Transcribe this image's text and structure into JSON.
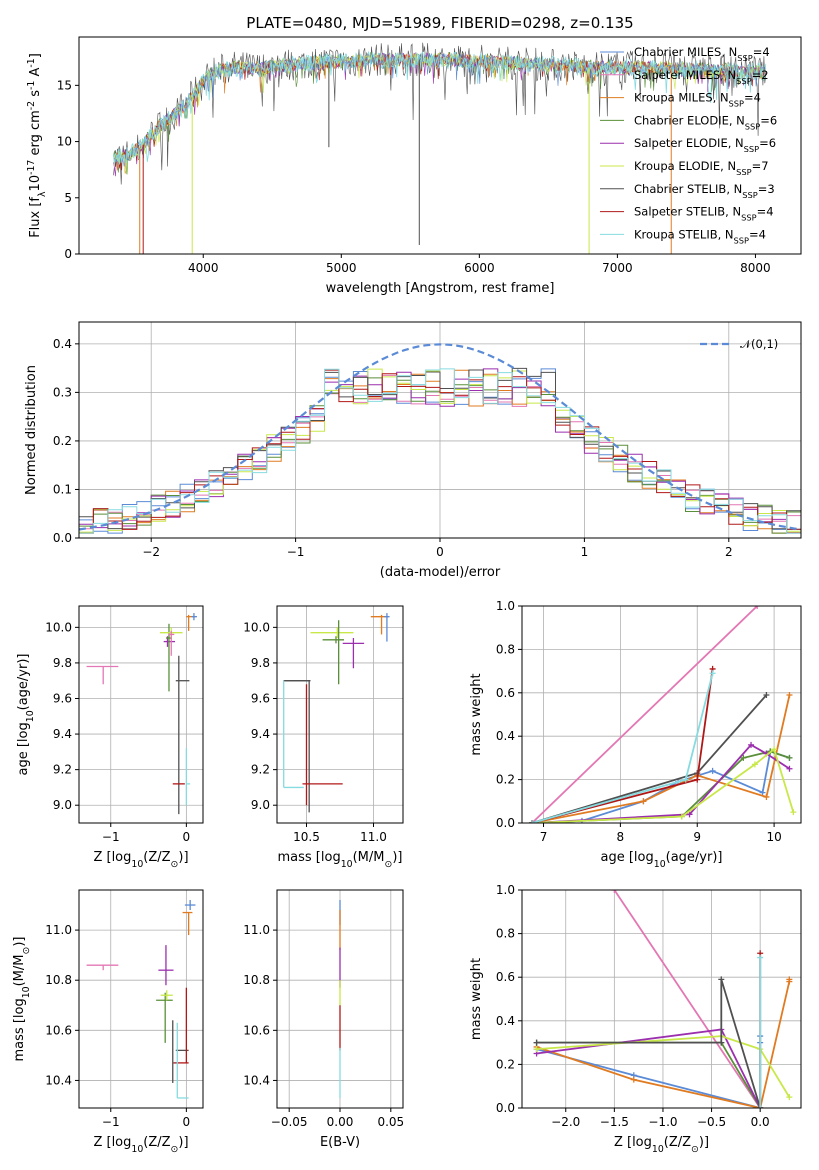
{
  "title": "PLATE=0480, MJD=51989, FIBERID=0298, z=0.135",
  "colors": {
    "Chabrier MILES": "#5b8bd6",
    "Salpeter MILES": "#e377b4",
    "Kroupa MILES": "#e07b22",
    "Chabrier ELODIE": "#5a8f3a",
    "Salpeter ELODIE": "#9b2fae",
    "Kroupa ELODIE": "#c8e84a",
    "Chabrier STELIB": "#505050",
    "Salpeter STELIB": "#b01818",
    "Kroupa STELIB": "#86dbe0"
  },
  "chart_data": [
    {
      "id": "spectrum",
      "type": "line",
      "xlabel": "wavelength [Angstrom, rest frame]",
      "ylabel": "Flux [f$_\\lambda$10$^{-17}$ erg cm$^{-2}$ s$^{-1}$ A$^{-1}$]",
      "xlim": [
        3100,
        8330
      ],
      "ylim": [
        0,
        19.3
      ],
      "xticks": [
        4000,
        5000,
        6000,
        7000,
        8000
      ],
      "yticks": [
        0,
        5,
        10,
        15
      ],
      "legend_position": "top-right",
      "legend": [
        {
          "label": "Chabrier MILES, N$_{SSP}$=4",
          "color": "#5b8bd6"
        },
        {
          "label": "Salpeter MILES, N$_{SSP}$=2",
          "color": "#e377b4"
        },
        {
          "label": "Kroupa MILES, N$_{SSP}$=4",
          "color": "#e07b22"
        },
        {
          "label": "Chabrier ELODIE, N$_{SSP}$=6",
          "color": "#5a8f3a"
        },
        {
          "label": "Salpeter ELODIE, N$_{SSP}$=6",
          "color": "#9b2fae"
        },
        {
          "label": "Kroupa ELODIE, N$_{SSP}$=7",
          "color": "#c8e84a"
        },
        {
          "label": "Chabrier STELIB, N$_{SSP}$=3",
          "color": "#505050"
        },
        {
          "label": "Salpeter STELIB, N$_{SSP}$=4",
          "color": "#b01818"
        },
        {
          "label": "Kroupa STELIB, N$_{SSP}$=4",
          "color": "#86dbe0"
        }
      ],
      "continuum": {
        "x": [
          3350,
          3450,
          3550,
          3650,
          3750,
          3850,
          3950,
          4050,
          4200,
          4400,
          4600,
          4800,
          5000,
          5300,
          5600,
          6000,
          6400,
          6800,
          7200,
          7600,
          8000,
          8100
        ],
        "y": [
          8.5,
          8.8,
          9.5,
          11.0,
          12.0,
          13.0,
          14.5,
          16.0,
          16.6,
          16.5,
          16.8,
          17.0,
          17.1,
          17.3,
          17.3,
          17.2,
          16.9,
          16.6,
          16.6,
          16.4,
          16.2,
          16.1
        ]
      },
      "spikes": [
        {
          "x": 3540,
          "y": 0,
          "color": "#e07b22"
        },
        {
          "x": 3565,
          "y": 0,
          "color": "#b01818"
        },
        {
          "x": 3920,
          "y": 0,
          "color": "#c8e84a"
        },
        {
          "x": 4910,
          "y": 9.5,
          "color": "#505050"
        },
        {
          "x": 5565,
          "y": 0.8,
          "color": "#505050"
        },
        {
          "x": 6795,
          "y": 0,
          "color": "#c8e84a"
        },
        {
          "x": 7390,
          "y": 0,
          "color": "#e07b22"
        }
      ]
    },
    {
      "id": "residuals",
      "type": "histogram",
      "xlabel": "(data-model)/error",
      "ylabel": "Normed distribution",
      "xlim": [
        -2.5,
        2.5
      ],
      "ylim": [
        0,
        0.445
      ],
      "xticks": [
        -2,
        -1,
        0,
        1,
        2
      ],
      "yticks": [
        0.0,
        0.1,
        0.2,
        0.3,
        0.4
      ],
      "legend_position": "top-right",
      "gaussian": {
        "label": "$\\mathcal{N}(0,1)$",
        "color": "#5b8bd6",
        "mean": 0,
        "sigma": 1
      }
    },
    {
      "id": "age_vs_Z",
      "type": "errorbar",
      "xlabel": "Z [log$_{10}$(Z/Z$_\\odot$)]",
      "ylabel": "age  [log$_{10}$(age/yr)]",
      "xlim": [
        -1.42,
        0.22
      ],
      "ylim": [
        8.9,
        10.12
      ],
      "xticks": [
        -1,
        0
      ],
      "yticks": [
        9.0,
        9.2,
        9.4,
        9.6,
        9.8,
        10.0
      ],
      "points": [
        {
          "x": -1.1,
          "y": 9.78,
          "xl": 0.22,
          "xh": 0.2,
          "yl": 0.1,
          "yh": 0.0,
          "color": "#e377b4"
        },
        {
          "x": -0.25,
          "y": 9.92,
          "xl": 0.05,
          "xh": 0.1,
          "yl": 0.03,
          "yh": 0.03,
          "color": "#9b2fae"
        },
        {
          "x": -0.23,
          "y": 9.94,
          "xl": 0.04,
          "xh": 0.04,
          "yl": 0.3,
          "yh": 0.08,
          "color": "#5a8f3a"
        },
        {
          "x": -0.2,
          "y": 9.97,
          "xl": 0.15,
          "xh": 0.15,
          "yl": 0.03,
          "yh": 0.03,
          "color": "#c8e84a"
        },
        {
          "x": -0.2,
          "y": 9.96,
          "xl": 0.04,
          "xh": 0.04,
          "yl": 0.12,
          "yh": 0.02,
          "color": "#e377b4"
        },
        {
          "x": -0.1,
          "y": 9.7,
          "xl": 0.04,
          "xh": 0.14,
          "yl": 0.75,
          "yh": 0.14,
          "color": "#505050"
        },
        {
          "x": -0.12,
          "y": 9.12,
          "xl": 0.06,
          "xh": 0.1,
          "yl": 0.0,
          "yh": 0.0,
          "color": "#b01818"
        },
        {
          "x": 0.0,
          "y": 9.12,
          "xl": 0.0,
          "xh": 0.05,
          "yl": 0.12,
          "yh": 0.2,
          "color": "#86dbe0"
        },
        {
          "x": 0.03,
          "y": 10.06,
          "xl": 0.03,
          "xh": 0.09,
          "yl": 0.08,
          "yh": 0.01,
          "color": "#e07b22"
        },
        {
          "x": 0.1,
          "y": 10.06,
          "xl": 0.03,
          "xh": 0.04,
          "yl": 0.02,
          "yh": 0.02,
          "color": "#5b8bd6"
        }
      ]
    },
    {
      "id": "age_vs_mass",
      "type": "errorbar",
      "xlabel": "mass [log$_{10}$(M/M$_\\odot$)]",
      "ylabel": "",
      "xlim": [
        10.28,
        11.22
      ],
      "ylim": [
        8.9,
        10.12
      ],
      "xticks": [
        10.5,
        11.0
      ],
      "yticks": [
        9.0,
        9.2,
        9.4,
        9.6,
        9.8,
        10.0
      ],
      "points": [
        {
          "x": 10.33,
          "y": 9.7,
          "xl": 0.0,
          "xh": 0.2,
          "yl": 0.0,
          "yh": 0.0,
          "color": "#505050"
        },
        {
          "x": 10.52,
          "y": 9.7,
          "xl": 0.19,
          "xh": 0.0,
          "yl": 0.74,
          "yh": 0.0,
          "color": "#505050"
        },
        {
          "x": 10.33,
          "y": 9.1,
          "xl": 0.0,
          "xh": 0.15,
          "yl": 0.0,
          "yh": 0.6,
          "color": "#86dbe0"
        },
        {
          "x": 10.47,
          "y": 9.12,
          "xl": 0.0,
          "xh": 0.3,
          "yl": 0.0,
          "yh": 0.0,
          "color": "#b01818"
        },
        {
          "x": 10.5,
          "y": 9.12,
          "xl": 0.0,
          "xh": 0.0,
          "yl": 0.12,
          "yh": 0.56,
          "color": "#b01818"
        },
        {
          "x": 10.72,
          "y": 9.93,
          "xl": 0.1,
          "xh": 0.06,
          "yl": 0.02,
          "yh": 0.02,
          "color": "#5a8f3a"
        },
        {
          "x": 10.73,
          "y": 9.97,
          "xl": 0.2,
          "xh": 0.12,
          "yl": 0.03,
          "yh": 0.03,
          "color": "#c8e84a"
        },
        {
          "x": 10.74,
          "y": 9.94,
          "xl": 0.0,
          "xh": 0.0,
          "yl": 0.26,
          "yh": 0.1,
          "color": "#5a8f3a"
        },
        {
          "x": 10.85,
          "y": 9.91,
          "xl": 0.08,
          "xh": 0.08,
          "yl": 0.14,
          "yh": 0.03,
          "color": "#9b2fae"
        },
        {
          "x": 11.06,
          "y": 10.06,
          "xl": 0.08,
          "xh": 0.05,
          "yl": 0.1,
          "yh": 0.01,
          "color": "#e07b22"
        },
        {
          "x": 11.1,
          "y": 10.06,
          "xl": 0.02,
          "xh": 0.02,
          "yl": 0.14,
          "yh": 0.02,
          "color": "#5b8bd6"
        }
      ]
    },
    {
      "id": "weight_vs_age",
      "type": "line",
      "xlabel": "age  [log$_{10}$(age/yr)]",
      "ylabel": "mass weight",
      "xlim": [
        6.72,
        10.35
      ],
      "ylim": [
        0.0,
        1.0
      ],
      "xticks": [
        7,
        8,
        9,
        10
      ],
      "yticks": [
        0.0,
        0.2,
        0.4,
        0.6,
        0.8,
        1.0
      ],
      "series": [
        {
          "color": "#e377b4",
          "x": [
            6.85,
            9.78
          ],
          "y": [
            0.0,
            1.0
          ]
        },
        {
          "color": "#5b8bd6",
          "x": [
            6.85,
            7.5,
            8.3,
            8.75,
            9.2,
            9.85,
            9.95,
            10.2
          ],
          "y": [
            0.0,
            0.01,
            0.1,
            0.19,
            0.24,
            0.14,
            0.33,
            0.3
          ]
        },
        {
          "color": "#e07b22",
          "x": [
            6.85,
            8.3,
            9.0,
            9.9,
            10.2
          ],
          "y": [
            0.0,
            0.1,
            0.22,
            0.12,
            0.59
          ]
        },
        {
          "color": "#5a8f3a",
          "x": [
            6.85,
            8.8,
            9.6,
            9.95,
            10.2
          ],
          "y": [
            0.0,
            0.03,
            0.3,
            0.33,
            0.3
          ]
        },
        {
          "color": "#9b2fae",
          "x": [
            6.85,
            8.9,
            9.7,
            9.9,
            10.2
          ],
          "y": [
            0.0,
            0.04,
            0.36,
            0.32,
            0.25
          ]
        },
        {
          "color": "#c8e84a",
          "x": [
            6.85,
            8.8,
            9.75,
            10.0,
            10.25
          ],
          "y": [
            0.0,
            0.03,
            0.27,
            0.34,
            0.05
          ]
        },
        {
          "color": "#505050",
          "x": [
            6.85,
            9.0,
            9.9
          ],
          "y": [
            0.0,
            0.23,
            0.59
          ]
        },
        {
          "color": "#b01818",
          "x": [
            6.85,
            9.0,
            9.2
          ],
          "y": [
            0.0,
            0.2,
            0.71
          ]
        },
        {
          "color": "#86dbe0",
          "x": [
            6.85,
            8.85,
            9.2
          ],
          "y": [
            0.0,
            0.2,
            0.69
          ]
        }
      ]
    },
    {
      "id": "mass_vs_Z",
      "type": "errorbar",
      "xlabel": "Z [log$_{10}$(Z/Z$_\\odot$)]",
      "ylabel": "mass [log$_{10}$(M/M$_\\odot$)]",
      "xlim": [
        -1.42,
        0.22
      ],
      "ylim": [
        10.29,
        11.16
      ],
      "xticks": [
        -1,
        0
      ],
      "yticks": [
        10.4,
        10.6,
        10.8,
        11.0
      ],
      "points": [
        {
          "x": -1.1,
          "y": 10.86,
          "xl": 0.22,
          "xh": 0.2,
          "yl": 0.02,
          "yh": 0.0,
          "color": "#e377b4"
        },
        {
          "x": -0.27,
          "y": 10.84,
          "xl": 0.1,
          "xh": 0.1,
          "yl": 0.06,
          "yh": 0.1,
          "color": "#9b2fae"
        },
        {
          "x": -0.28,
          "y": 10.72,
          "xl": 0.12,
          "xh": 0.1,
          "yl": 0.17,
          "yh": 0.03,
          "color": "#5a8f3a"
        },
        {
          "x": -0.26,
          "y": 10.74,
          "xl": 0.08,
          "xh": 0.08,
          "yl": 0.02,
          "yh": 0.02,
          "color": "#c8e84a"
        },
        {
          "x": -0.18,
          "y": 10.52,
          "xl": 0.0,
          "xh": 0.0,
          "yl": 0.13,
          "yh": 0.12,
          "color": "#505050"
        },
        {
          "x": -0.12,
          "y": 10.52,
          "xl": 0.02,
          "xh": 0.15,
          "yl": 0.0,
          "yh": 0.0,
          "color": "#505050"
        },
        {
          "x": -0.12,
          "y": 10.47,
          "xl": 0.05,
          "xh": 0.15,
          "yl": 0.0,
          "yh": 0.0,
          "color": "#b01818"
        },
        {
          "x": 0.0,
          "y": 10.47,
          "xl": 0.0,
          "xh": 0.0,
          "yl": 0.0,
          "yh": 0.3,
          "color": "#b01818"
        },
        {
          "x": -0.12,
          "y": 10.33,
          "xl": 0.0,
          "xh": 0.15,
          "yl": 0.0,
          "yh": 0.3,
          "color": "#86dbe0"
        },
        {
          "x": 0.03,
          "y": 11.07,
          "xl": 0.08,
          "xh": 0.05,
          "yl": 0.09,
          "yh": 0.0,
          "color": "#e07b22"
        },
        {
          "x": 0.05,
          "y": 11.1,
          "xl": 0.07,
          "xh": 0.07,
          "yl": 0.02,
          "yh": 0.02,
          "color": "#5b8bd6"
        }
      ]
    },
    {
      "id": "mass_vs_ebv",
      "type": "errorbar",
      "xlabel": "E(B-V)",
      "ylabel": "",
      "xlim": [
        -0.062,
        0.062
      ],
      "ylim": [
        10.29,
        11.16
      ],
      "xticks": [
        -0.05,
        0.0,
        0.05
      ],
      "yticks": [
        10.4,
        10.6,
        10.8,
        11.0
      ],
      "points": [
        {
          "x": 0.0,
          "y": 11.07,
          "xl": 0,
          "xh": 0,
          "yl": 0.05,
          "yh": 0.05,
          "color": "#5b8bd6"
        },
        {
          "x": 0.0,
          "y": 11.0,
          "xl": 0,
          "xh": 0,
          "yl": 0.08,
          "yh": 0.08,
          "color": "#e07b22"
        },
        {
          "x": 0.0,
          "y": 10.85,
          "xl": 0,
          "xh": 0,
          "yl": 0.08,
          "yh": 0.08,
          "color": "#9b2fae"
        },
        {
          "x": 0.0,
          "y": 10.75,
          "xl": 0,
          "xh": 0,
          "yl": 0.05,
          "yh": 0.05,
          "color": "#c8e84a"
        },
        {
          "x": 0.0,
          "y": 10.6,
          "xl": 0,
          "xh": 0,
          "yl": 0.08,
          "yh": 0.1,
          "color": "#b01818"
        },
        {
          "x": 0.0,
          "y": 10.45,
          "xl": 0,
          "xh": 0,
          "yl": 0.12,
          "yh": 0.08,
          "color": "#86dbe0"
        }
      ]
    },
    {
      "id": "weight_vs_Z",
      "type": "line",
      "xlabel": "Z [log$_{10}$(Z/Z$_\\odot$)]",
      "ylabel": "mass weight",
      "xlim": [
        -2.45,
        0.42
      ],
      "ylim": [
        0.0,
        1.0
      ],
      "xticks": [
        -2.0,
        -1.5,
        -1.0,
        -0.5,
        0.0
      ],
      "yticks": [
        0.0,
        0.2,
        0.4,
        0.6,
        0.8,
        1.0
      ],
      "series": [
        {
          "color": "#e377b4",
          "x": [
            -1.5,
            0.0
          ],
          "y": [
            1.0,
            0.0
          ]
        },
        {
          "color": "#5b8bd6",
          "x": [
            -2.3,
            -1.3,
            0.0,
            0.0,
            0.0
          ],
          "y": [
            0.27,
            0.15,
            0.0,
            0.33,
            0.3
          ]
        },
        {
          "color": "#e07b22",
          "x": [
            -2.3,
            -1.3,
            0.0,
            0.3,
            0.3
          ],
          "y": [
            0.28,
            0.13,
            0.0,
            0.58,
            0.59
          ]
        },
        {
          "color": "#5a8f3a",
          "x": [
            -2.3,
            -0.4,
            0.0
          ],
          "y": [
            0.3,
            0.3,
            0.0
          ]
        },
        {
          "color": "#9b2fae",
          "x": [
            -2.3,
            -0.4,
            0.0
          ],
          "y": [
            0.25,
            0.36,
            0.0
          ]
        },
        {
          "color": "#c8e84a",
          "x": [
            -2.3,
            -0.4,
            0.0,
            0.3
          ],
          "y": [
            0.27,
            0.33,
            0.27,
            0.05
          ]
        },
        {
          "color": "#505050",
          "x": [
            -2.3,
            -0.4,
            -0.4,
            0.0
          ],
          "y": [
            0.3,
            0.3,
            0.59,
            0.0
          ]
        },
        {
          "color": "#b01818",
          "x": [
            0.0,
            0.0
          ],
          "y": [
            0.0,
            0.71
          ]
        },
        {
          "color": "#86dbe0",
          "x": [
            0.0,
            0.0
          ],
          "y": [
            0.0,
            0.69
          ]
        }
      ]
    }
  ]
}
